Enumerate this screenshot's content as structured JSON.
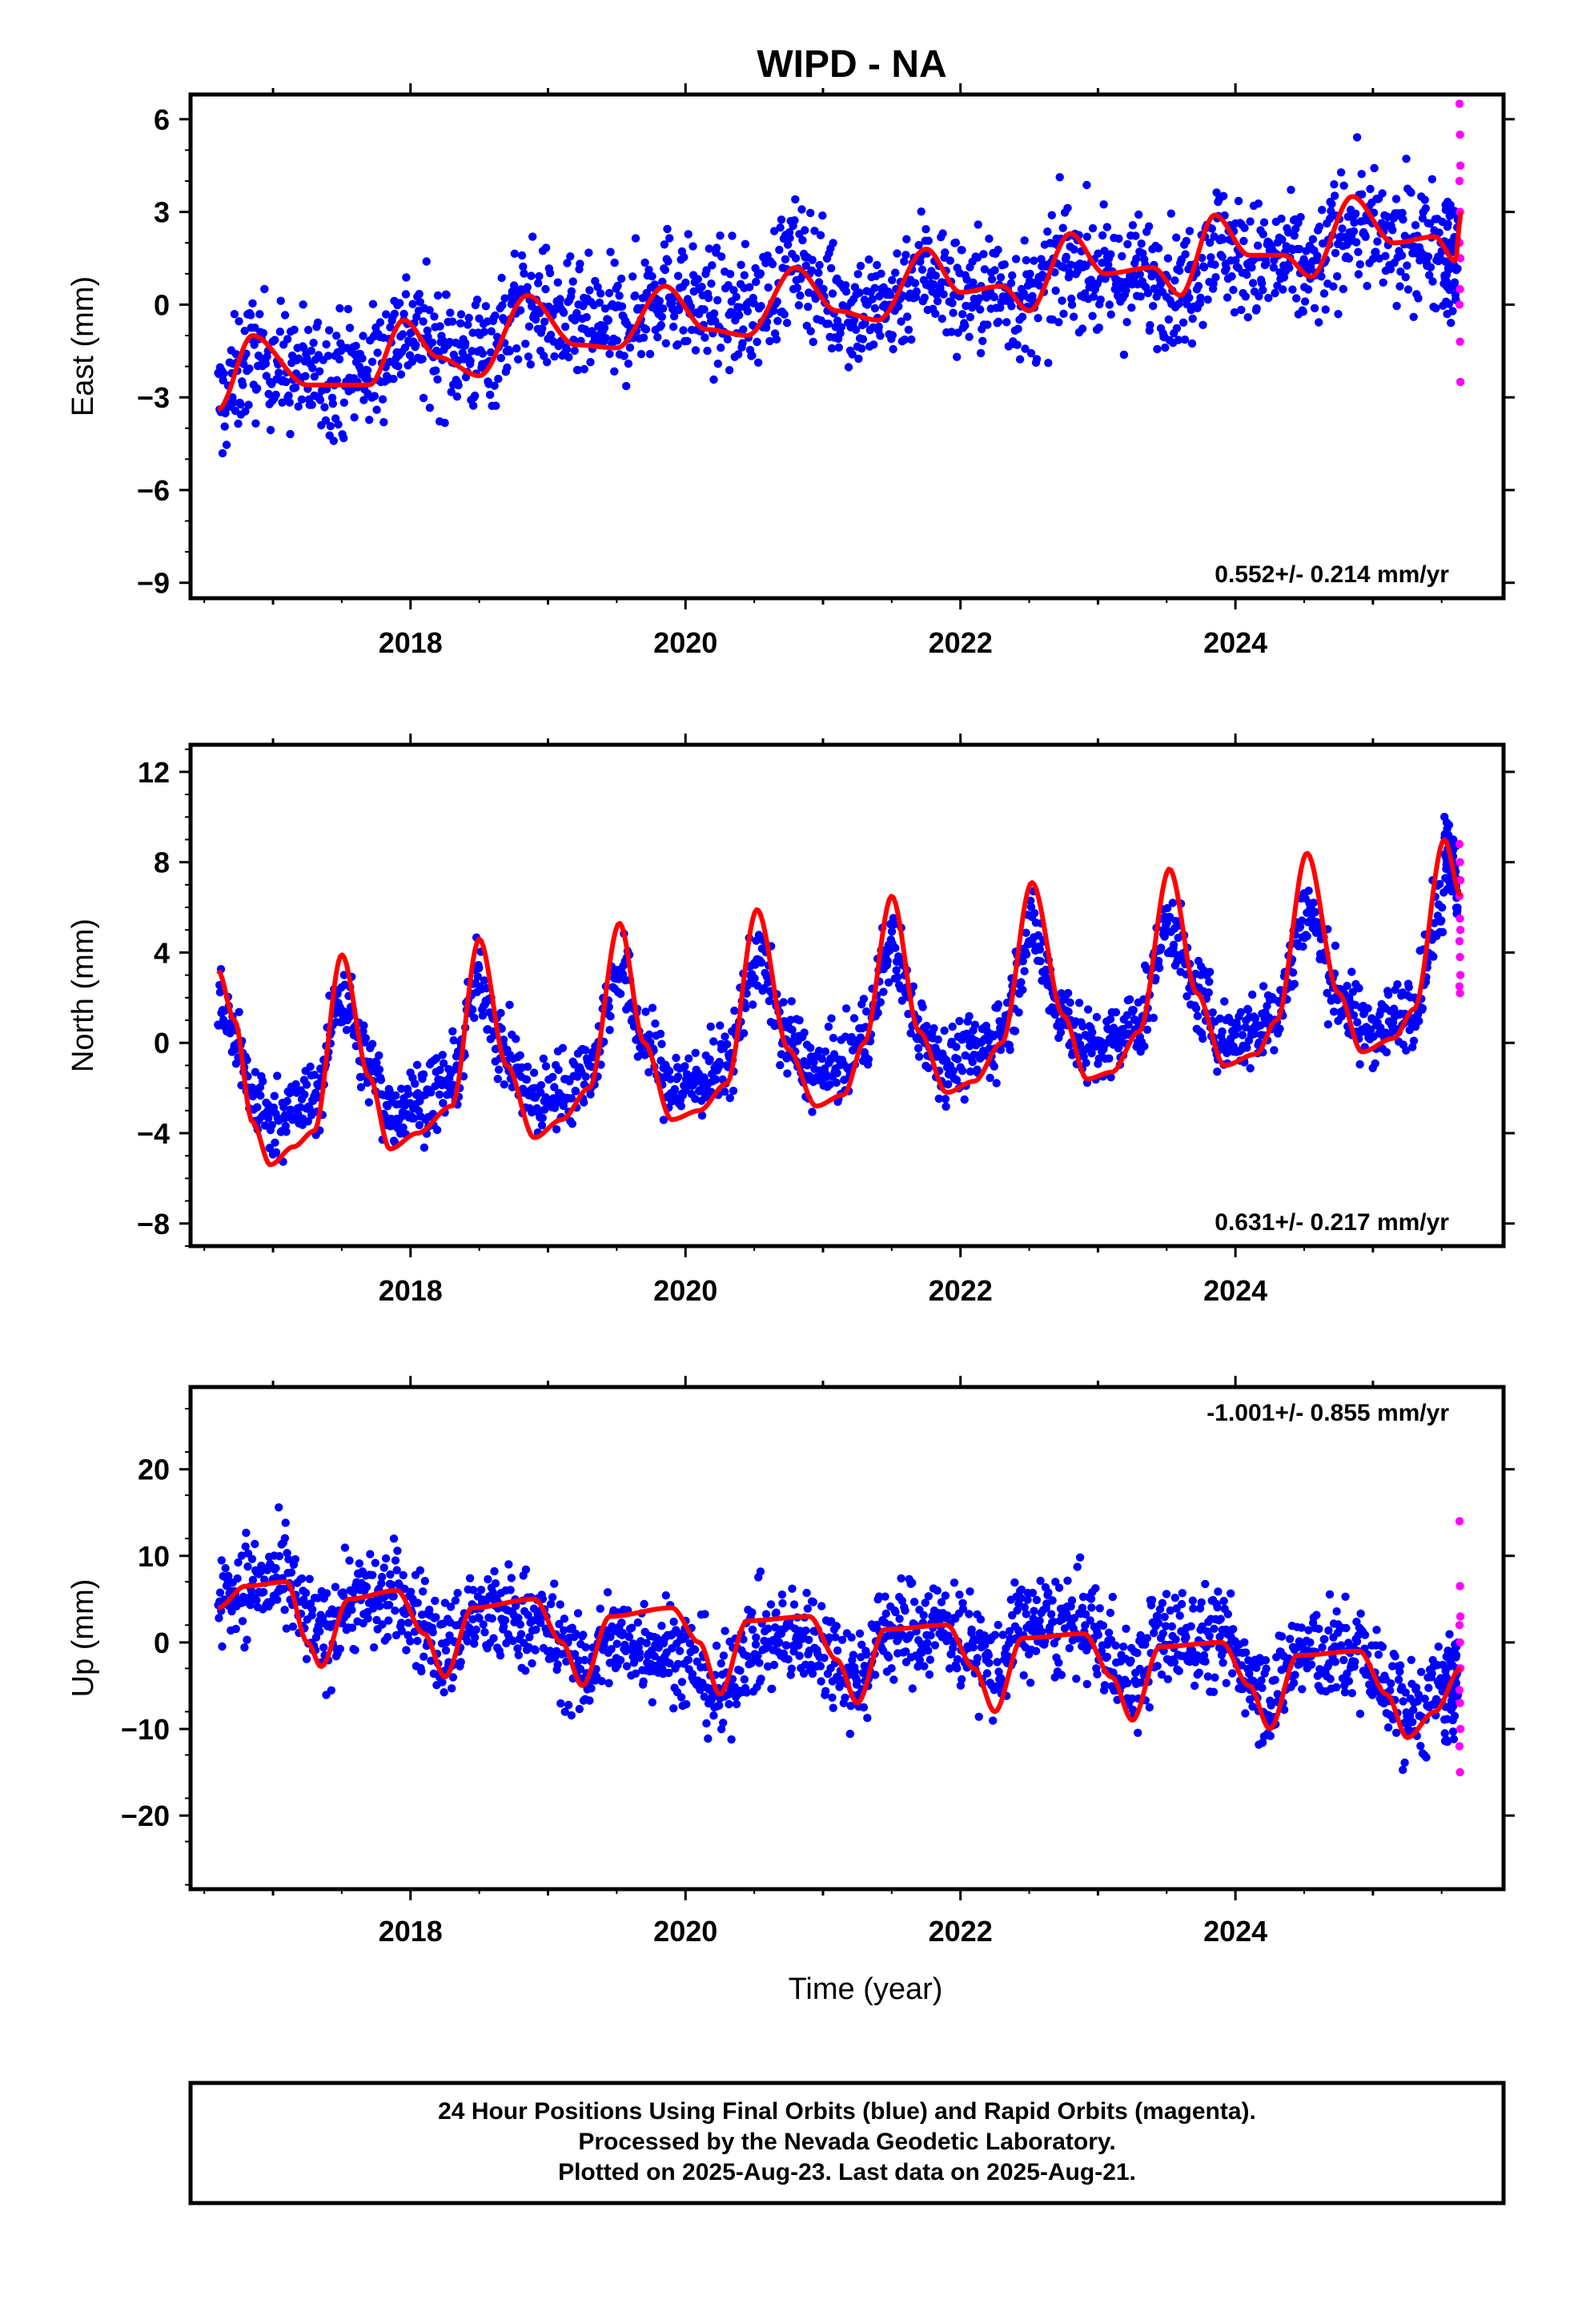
{
  "title": "WIPD - NA",
  "colors": {
    "final": "#0000ff",
    "rapid": "#ff00ff",
    "model": "#ff0000"
  },
  "chart_data": [
    {
      "type": "scatter",
      "panel": "east",
      "ylabel": "East (mm)",
      "xlabel": "",
      "xlim": [
        2016.4,
        2025.95
      ],
      "ylim": [
        -9.5,
        6.8
      ],
      "yticks": [
        6,
        3,
        0,
        -3,
        -6,
        -9
      ],
      "xticks": [
        2018,
        2020,
        2022,
        2024
      ],
      "rate_label": "0.552+/- 0.214 mm/yr",
      "data_range": [
        2016.6,
        2025.64
      ],
      "series": [
        {
          "role": "final",
          "trend": {
            "t0": 2016.6,
            "v0": -3.0,
            "knots": [
              [
                2016.6,
                -3.0
              ],
              [
                2017.5,
                -1.5
              ],
              [
                2018.5,
                -0.6
              ],
              [
                2019.5,
                0.3
              ],
              [
                2020.5,
                1.0
              ],
              [
                2020.9,
                1.8
              ],
              [
                2021.2,
                0.2
              ],
              [
                2022.0,
                0.2
              ],
              [
                2023.0,
                0.4
              ],
              [
                2024.0,
                0.9
              ],
              [
                2025.64,
                2.0
              ]
            ]
          },
          "amp": 0.8,
          "phase": 0.15,
          "noise": 1.4
        },
        {
          "role": "rapid",
          "values_at_end": [
            6.5,
            5.5,
            4.5,
            4.0,
            3.0,
            1.5,
            0.0,
            -1.2,
            -2.5,
            2.0,
            0.5
          ]
        },
        {
          "role": "model",
          "knots": [
            [
              2016.6,
              -3.4
            ],
            [
              2016.85,
              -1.0
            ],
            [
              2017.25,
              -2.6
            ],
            [
              2017.7,
              -2.6
            ],
            [
              2017.95,
              -0.5
            ],
            [
              2018.2,
              -1.7
            ],
            [
              2018.5,
              -2.3
            ],
            [
              2018.85,
              0.3
            ],
            [
              2019.2,
              -1.3
            ],
            [
              2019.5,
              -1.4
            ],
            [
              2019.85,
              0.6
            ],
            [
              2020.15,
              -0.8
            ],
            [
              2020.45,
              -1.0
            ],
            [
              2020.8,
              1.2
            ],
            [
              2021.1,
              -0.2
            ],
            [
              2021.4,
              -0.5
            ],
            [
              2021.75,
              1.8
            ],
            [
              2022.0,
              0.4
            ],
            [
              2022.3,
              0.6
            ],
            [
              2022.5,
              -0.2
            ],
            [
              2022.8,
              2.3
            ],
            [
              2023.05,
              1.0
            ],
            [
              2023.4,
              1.2
            ],
            [
              2023.6,
              0.3
            ],
            [
              2023.85,
              2.9
            ],
            [
              2024.1,
              1.6
            ],
            [
              2024.35,
              1.6
            ],
            [
              2024.55,
              0.9
            ],
            [
              2024.85,
              3.5
            ],
            [
              2025.15,
              2.0
            ],
            [
              2025.45,
              2.2
            ],
            [
              2025.6,
              1.4
            ],
            [
              2025.64,
              3.0
            ]
          ]
        }
      ]
    },
    {
      "type": "scatter",
      "panel": "north",
      "ylabel": "North (mm)",
      "xlabel": "",
      "xlim": [
        2016.4,
        2025.95
      ],
      "ylim": [
        -9,
        13.2
      ],
      "yticks": [
        12,
        8,
        4,
        0,
        -4,
        -8
      ],
      "xticks": [
        2018,
        2020,
        2022,
        2024
      ],
      "rate_label": "0.631+/- 0.217 mm/yr",
      "data_range": [
        2016.6,
        2025.64
      ],
      "series": [
        {
          "role": "final",
          "trend": {
            "t0": 2016.6,
            "v0": 0.0,
            "knots": [
              [
                2016.6,
                -0.5
              ],
              [
                2025.64,
                2.2
              ]
            ]
          },
          "amp": 4.8,
          "phase": 0.35,
          "noise": 1.2
        },
        {
          "role": "rapid",
          "values_at_end": [
            8.8,
            8.0,
            7.2,
            6.5,
            5.5,
            5.0,
            4.5,
            3.8,
            3.0,
            2.5,
            2.2
          ]
        },
        {
          "role": "model",
          "knots": [
            [
              2016.6,
              3.2
            ],
            [
              2016.72,
              1.0
            ],
            [
              2016.85,
              -3.5
            ],
            [
              2016.98,
              -5.4
            ],
            [
              2017.15,
              -4.6
            ],
            [
              2017.3,
              -3.9
            ],
            [
              2017.5,
              3.9
            ],
            [
              2017.7,
              -1.5
            ],
            [
              2017.85,
              -4.7
            ],
            [
              2018.05,
              -4.0
            ],
            [
              2018.3,
              -2.8
            ],
            [
              2018.5,
              4.6
            ],
            [
              2018.7,
              -1.0
            ],
            [
              2018.9,
              -4.2
            ],
            [
              2019.1,
              -3.4
            ],
            [
              2019.3,
              -2.0
            ],
            [
              2019.52,
              5.3
            ],
            [
              2019.7,
              0.0
            ],
            [
              2019.9,
              -3.4
            ],
            [
              2020.1,
              -3.0
            ],
            [
              2020.3,
              -1.8
            ],
            [
              2020.52,
              5.9
            ],
            [
              2020.75,
              -0.3
            ],
            [
              2020.95,
              -2.8
            ],
            [
              2021.15,
              -2.3
            ],
            [
              2021.3,
              0.0
            ],
            [
              2021.5,
              6.5
            ],
            [
              2021.7,
              0.5
            ],
            [
              2021.9,
              -2.2
            ],
            [
              2022.1,
              -1.7
            ],
            [
              2022.3,
              0.0
            ],
            [
              2022.52,
              7.1
            ],
            [
              2022.75,
              1.2
            ],
            [
              2022.92,
              -1.6
            ],
            [
              2023.1,
              -1.3
            ],
            [
              2023.3,
              0.5
            ],
            [
              2023.52,
              7.7
            ],
            [
              2023.72,
              2.2
            ],
            [
              2023.92,
              -1.0
            ],
            [
              2024.15,
              -0.5
            ],
            [
              2024.3,
              1.0
            ],
            [
              2024.52,
              8.4
            ],
            [
              2024.75,
              2.2
            ],
            [
              2024.92,
              -0.4
            ],
            [
              2025.15,
              0.2
            ],
            [
              2025.3,
              1.5
            ],
            [
              2025.52,
              9.0
            ],
            [
              2025.64,
              6.5
            ]
          ]
        }
      ]
    },
    {
      "type": "scatter",
      "panel": "up",
      "ylabel": "Up (mm)",
      "xlabel": "Time (year)",
      "xlim": [
        2016.4,
        2025.95
      ],
      "ylim": [
        -28.5,
        29.5
      ],
      "yticks": [
        20,
        10,
        0,
        -10,
        -20
      ],
      "xticks": [
        2018,
        2020,
        2022,
        2024
      ],
      "rate_label": "-1.001+/- 0.855 mm/yr",
      "data_range": [
        2016.6,
        2025.64
      ],
      "series": [
        {
          "role": "final",
          "trend": {
            "t0": 2016.6,
            "v0": 0.0,
            "knots": [
              [
                2016.6,
                7.0
              ],
              [
                2018.0,
                4.0
              ],
              [
                2019.0,
                -1.0
              ],
              [
                2020.1,
                -8.0
              ],
              [
                2020.6,
                -4.0
              ],
              [
                2021.5,
                1.0
              ],
              [
                2022.5,
                4.0
              ],
              [
                2023.5,
                2.0
              ],
              [
                2024.5,
                -1.0
              ],
              [
                2025.64,
                -5.0
              ]
            ]
          },
          "amp": 5.5,
          "phase": 0.1,
          "noise": 4.2
        },
        {
          "role": "rapid",
          "values_at_end": [
            14.0,
            6.5,
            3.0,
            2.0,
            0.0,
            -3.0,
            -5.5,
            -7.0,
            -10.0,
            -12.0,
            -15.0
          ]
        },
        {
          "role": "model",
          "knots": [
            [
              2016.6,
              4.0
            ],
            [
              2016.8,
              6.5
            ],
            [
              2017.1,
              7.0
            ],
            [
              2017.25,
              0.0
            ],
            [
              2017.35,
              -2.8
            ],
            [
              2017.55,
              5.0
            ],
            [
              2017.9,
              6.0
            ],
            [
              2018.1,
              1.0
            ],
            [
              2018.25,
              -4.0
            ],
            [
              2018.45,
              4.0
            ],
            [
              2018.9,
              5.0
            ],
            [
              2019.1,
              0.0
            ],
            [
              2019.25,
              -5.0
            ],
            [
              2019.45,
              3.0
            ],
            [
              2019.9,
              4.0
            ],
            [
              2020.1,
              0.0
            ],
            [
              2020.25,
              -6.0
            ],
            [
              2020.45,
              2.5
            ],
            [
              2020.9,
              3.0
            ],
            [
              2021.1,
              -2.0
            ],
            [
              2021.25,
              -7.0
            ],
            [
              2021.45,
              1.5
            ],
            [
              2021.9,
              2.0
            ],
            [
              2022.1,
              -3.0
            ],
            [
              2022.25,
              -8.0
            ],
            [
              2022.45,
              0.5
            ],
            [
              2022.9,
              1.0
            ],
            [
              2023.1,
              -4.0
            ],
            [
              2023.25,
              -9.0
            ],
            [
              2023.45,
              -0.5
            ],
            [
              2023.9,
              0.0
            ],
            [
              2024.1,
              -5.0
            ],
            [
              2024.25,
              -10.0
            ],
            [
              2024.45,
              -1.5
            ],
            [
              2024.9,
              -1.0
            ],
            [
              2025.1,
              -6.0
            ],
            [
              2025.25,
              -11.0
            ],
            [
              2025.45,
              -8.0
            ],
            [
              2025.64,
              -3.0
            ]
          ]
        }
      ]
    }
  ],
  "footer": {
    "line1": "24 Hour Positions Using Final Orbits (blue) and Rapid Orbits (magenta).",
    "line2": "Processed by the Nevada Geodetic Laboratory.",
    "line3": "Plotted on 2025-Aug-23. Last data on 2025-Aug-21."
  }
}
